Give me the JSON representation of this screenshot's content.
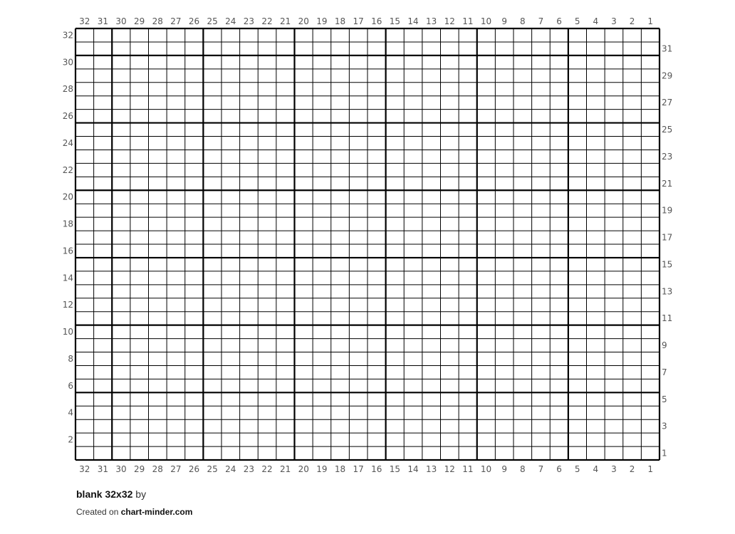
{
  "chart_data": {
    "type": "table",
    "grid_columns": 32,
    "grid_rows": 32,
    "major_every": 5,
    "column_labels": [
      32,
      31,
      30,
      29,
      28,
      27,
      26,
      25,
      24,
      23,
      22,
      21,
      20,
      19,
      18,
      17,
      16,
      15,
      14,
      13,
      12,
      11,
      10,
      9,
      8,
      7,
      6,
      5,
      4,
      3,
      2,
      1
    ],
    "row_labels_left": [
      32,
      30,
      28,
      26,
      24,
      22,
      20,
      18,
      16,
      14,
      12,
      10,
      8,
      6,
      4,
      2
    ],
    "row_labels_right": [
      31,
      29,
      27,
      25,
      23,
      21,
      19,
      17,
      15,
      13,
      11,
      9,
      7,
      5,
      3,
      1
    ],
    "cells": "empty",
    "line_color": "#000000",
    "label_color": "#555555"
  },
  "footer": {
    "title": "blank 32x32",
    "by": "by",
    "created_prefix": "Created on",
    "site": "chart-minder.com"
  }
}
